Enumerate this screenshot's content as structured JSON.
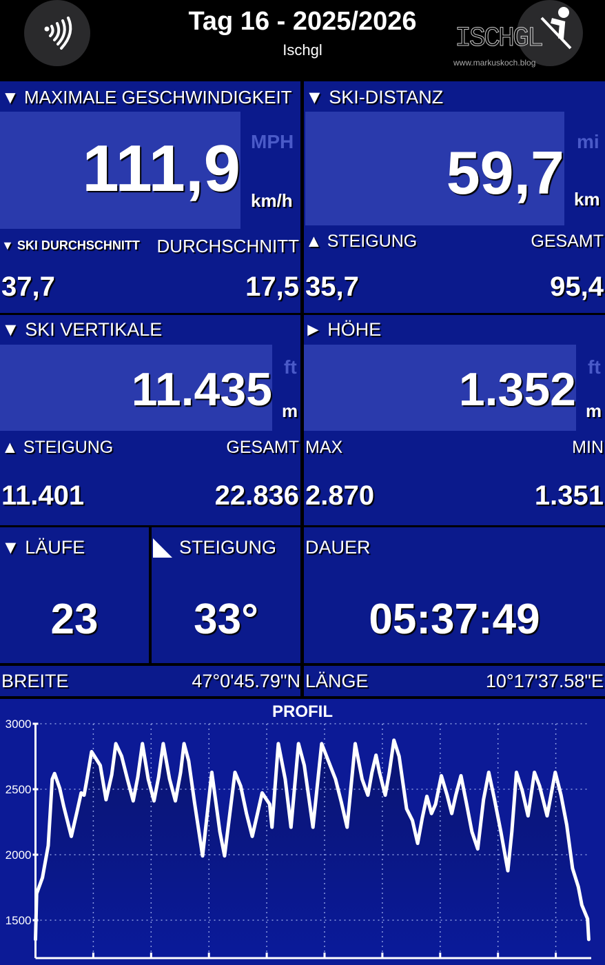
{
  "header": {
    "title": "Tag 16 - 2025/2026",
    "subtitle": "Ischgl",
    "left_icon": "signal-waves-icon",
    "right_icon": "skier-icon",
    "watermark": "ISCHGL 26 www.markuskoch.blog"
  },
  "max_speed": {
    "label": "▼ MAXIMALE GESCHWINDIGKEIT",
    "value": "111,9",
    "unit_alt": "MPH",
    "unit": "km/h",
    "sub_left_label": "▼ SKI DURCHSCHNITT",
    "sub_right_label": "DURCHSCHNITT",
    "sub_left_value": "37,7",
    "sub_right_value": "17,5"
  },
  "ski_distance": {
    "label": "▼ SKI-DISTANZ",
    "value": "59,7",
    "unit_alt": "mi",
    "unit": "km",
    "sub_left_label": "▲ STEIGUNG",
    "sub_right_label": "GESAMT",
    "sub_left_value": "35,7",
    "sub_right_value": "95,4"
  },
  "ski_vertical": {
    "label": "▼ SKI VERTIKALE",
    "value": "11.435",
    "unit_alt": "ft",
    "unit": "m",
    "sub_left_label": "▲ STEIGUNG",
    "sub_right_label": "GESAMT",
    "sub_left_value": "11.401",
    "sub_right_value": "22.836"
  },
  "altitude": {
    "label": "► HÖHE",
    "value": "1.352",
    "unit_alt": "ft",
    "unit": "m",
    "sub_left_label": "MAX",
    "sub_right_label": "MIN",
    "sub_left_value": "2.870",
    "sub_right_value": "1.351"
  },
  "runs": {
    "label": "▼ LÄUFE",
    "value": "23"
  },
  "slope": {
    "label": "STEIGUNG",
    "value": "33°"
  },
  "duration": {
    "label": "DAUER",
    "value": "05:37:49"
  },
  "location": {
    "lat_label": "BREITE",
    "lat_value": "47°0'45.79\"N",
    "lon_label": "LÄNGE",
    "lon_value": "10°17'37.58\"E"
  },
  "chart_data": {
    "type": "area",
    "title": "PROFIL",
    "xlabel": "",
    "ylabel": "",
    "xlim": [
      0,
      96
    ],
    "ylim": [
      1300,
      3000
    ],
    "x_ticks": [
      0,
      10,
      20,
      30,
      40,
      50,
      60,
      70,
      80,
      90
    ],
    "y_ticks": [
      1500,
      2000,
      2500,
      3000
    ],
    "grid": true,
    "points": [
      [
        0,
        1353
      ],
      [
        0.2,
        1703
      ],
      [
        1.2,
        1825
      ],
      [
        2.2,
        2070
      ],
      [
        2.9,
        2577
      ],
      [
        3.3,
        2620
      ],
      [
        4.2,
        2507
      ],
      [
        4.9,
        2367
      ],
      [
        6.2,
        2140
      ],
      [
        7.2,
        2332
      ],
      [
        7.9,
        2472
      ],
      [
        8.4,
        2455
      ],
      [
        8.9,
        2577
      ],
      [
        9.7,
        2787
      ],
      [
        11.2,
        2682
      ],
      [
        12.2,
        2420
      ],
      [
        13.2,
        2612
      ],
      [
        13.9,
        2848
      ],
      [
        14.9,
        2752
      ],
      [
        15.9,
        2577
      ],
      [
        16.9,
        2411
      ],
      [
        17.7,
        2594
      ],
      [
        18.5,
        2848
      ],
      [
        19.5,
        2577
      ],
      [
        20.5,
        2411
      ],
      [
        21.3,
        2594
      ],
      [
        22.1,
        2848
      ],
      [
        23.2,
        2577
      ],
      [
        24.2,
        2411
      ],
      [
        25.1,
        2629
      ],
      [
        25.7,
        2848
      ],
      [
        26.5,
        2717
      ],
      [
        27.5,
        2402
      ],
      [
        28.9,
        1991
      ],
      [
        30.5,
        2629
      ],
      [
        31.9,
        2175
      ],
      [
        32.7,
        1991
      ],
      [
        34.5,
        2629
      ],
      [
        35.5,
        2524
      ],
      [
        36.5,
        2315
      ],
      [
        37.5,
        2140
      ],
      [
        38.4,
        2315
      ],
      [
        39.2,
        2472
      ],
      [
        40.5,
        2385
      ],
      [
        40.9,
        2210
      ],
      [
        42.0,
        2848
      ],
      [
        43.2,
        2577
      ],
      [
        44.2,
        2210
      ],
      [
        45.5,
        2848
      ],
      [
        46.5,
        2682
      ],
      [
        48.0,
        2210
      ],
      [
        49.5,
        2848
      ],
      [
        50.5,
        2734
      ],
      [
        51.9,
        2577
      ],
      [
        52.9,
        2402
      ],
      [
        53.9,
        2210
      ],
      [
        55.3,
        2848
      ],
      [
        56.5,
        2577
      ],
      [
        57.5,
        2455
      ],
      [
        58.2,
        2629
      ],
      [
        58.9,
        2760
      ],
      [
        59.5,
        2629
      ],
      [
        60.5,
        2455
      ],
      [
        61.2,
        2629
      ],
      [
        62.0,
        2874
      ],
      [
        62.9,
        2752
      ],
      [
        64.2,
        2350
      ],
      [
        65.2,
        2262
      ],
      [
        66.1,
        2087
      ],
      [
        66.9,
        2280
      ],
      [
        67.7,
        2446
      ],
      [
        68.5,
        2315
      ],
      [
        69.2,
        2385
      ],
      [
        70.2,
        2603
      ],
      [
        71.2,
        2455
      ],
      [
        72.0,
        2315
      ],
      [
        72.7,
        2455
      ],
      [
        73.6,
        2603
      ],
      [
        74.5,
        2402
      ],
      [
        75.5,
        2175
      ],
      [
        76.5,
        2044
      ],
      [
        77.5,
        2420
      ],
      [
        78.4,
        2629
      ],
      [
        79.4,
        2420
      ],
      [
        80.5,
        2175
      ],
      [
        81.7,
        1878
      ],
      [
        82.4,
        2175
      ],
      [
        83.2,
        2629
      ],
      [
        84.2,
        2489
      ],
      [
        85.2,
        2297
      ],
      [
        86.3,
        2629
      ],
      [
        87.2,
        2524
      ],
      [
        88.5,
        2297
      ],
      [
        89.9,
        2629
      ],
      [
        90.9,
        2455
      ],
      [
        91.9,
        2227
      ],
      [
        92.9,
        1895
      ],
      [
        93.9,
        1755
      ],
      [
        94.5,
        1615
      ],
      [
        95.5,
        1510
      ],
      [
        95.7,
        1353
      ]
    ]
  }
}
